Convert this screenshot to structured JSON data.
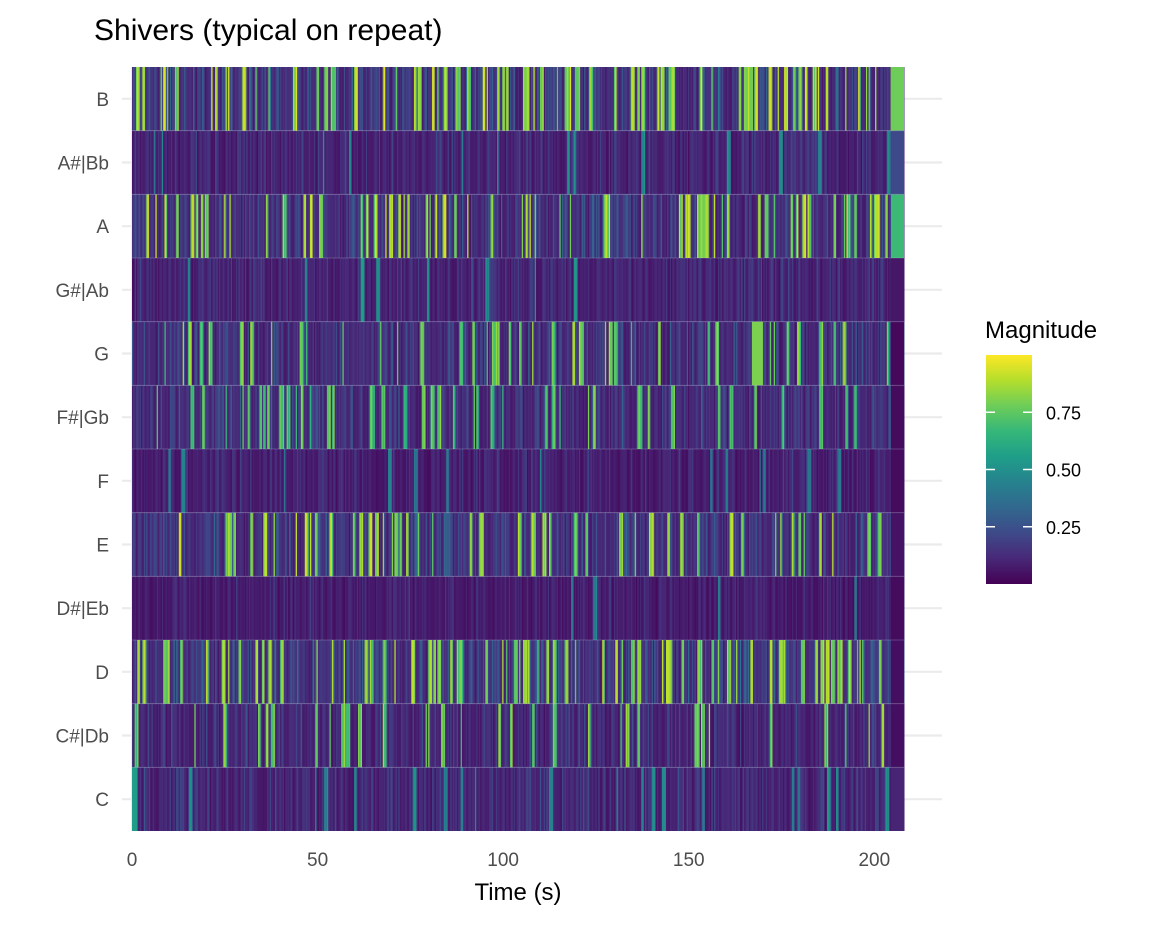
{
  "chart_data": {
    "type": "heatmap",
    "title": "Shivers (typical on repeat)",
    "xlabel": "Time (s)",
    "ylabel": "",
    "xlim": [
      0,
      208
    ],
    "x_ticks": [
      0,
      50,
      100,
      150,
      200
    ],
    "x_tick_labels": [
      "0",
      "50",
      "100",
      "150",
      "200"
    ],
    "pitch_classes": [
      "C",
      "C#|Db",
      "D",
      "D#|Eb",
      "E",
      "F",
      "F#|Gb",
      "G",
      "G#|Ab",
      "A",
      "A#|Bb",
      "B"
    ],
    "legend": {
      "title": "Magnitude",
      "breaks": [
        0.25,
        0.5,
        0.75
      ],
      "break_labels": [
        "0.25",
        "0.50",
        "0.75"
      ],
      "range": [
        0.0,
        1.0
      ],
      "position": "right"
    },
    "colors": {
      "palette": "viridis",
      "stops": [
        "#440154",
        "#482878",
        "#3E4A89",
        "#31688E",
        "#26828E",
        "#1F9E89",
        "#35B779",
        "#6DCD59",
        "#B4DE2C",
        "#FDE725"
      ],
      "gridline": "#ebebeb",
      "tick_text": "#4d4d4d"
    },
    "segment_duration_s": 0.35,
    "profiles": [
      {
        "pitch": "C",
        "mean": 0.14,
        "peak_rate": 0.04,
        "peak_level": 0.5
      },
      {
        "pitch": "C#|Db",
        "mean": 0.15,
        "peak_rate": 0.05,
        "peak_level": 0.85
      },
      {
        "pitch": "D",
        "mean": 0.2,
        "peak_rate": 0.13,
        "peak_level": 0.88
      },
      {
        "pitch": "D#|Eb",
        "mean": 0.1,
        "peak_rate": 0.01,
        "peak_level": 0.45
      },
      {
        "pitch": "E",
        "mean": 0.19,
        "peak_rate": 0.11,
        "peak_level": 0.88
      },
      {
        "pitch": "F",
        "mean": 0.11,
        "peak_rate": 0.02,
        "peak_level": 0.45
      },
      {
        "pitch": "F#|Gb",
        "mean": 0.17,
        "peak_rate": 0.08,
        "peak_level": 0.8
      },
      {
        "pitch": "G",
        "mean": 0.17,
        "peak_rate": 0.08,
        "peak_level": 0.85
      },
      {
        "pitch": "G#|Ab",
        "mean": 0.13,
        "peak_rate": 0.02,
        "peak_level": 0.55
      },
      {
        "pitch": "A",
        "mean": 0.18,
        "peak_rate": 0.12,
        "peak_level": 0.9
      },
      {
        "pitch": "A#|Bb",
        "mean": 0.13,
        "peak_rate": 0.02,
        "peak_level": 0.5
      },
      {
        "pitch": "B",
        "mean": 0.2,
        "peak_rate": 0.14,
        "peak_level": 0.92
      }
    ],
    "sustained_segments": [
      {
        "pitch": "B",
        "x_start": 204.5,
        "x_end": 208.0,
        "value": 0.78
      },
      {
        "pitch": "A",
        "x_start": 204.5,
        "x_end": 208.0,
        "value": 0.68
      },
      {
        "pitch": "A#|Bb",
        "x_start": 204.5,
        "x_end": 208.0,
        "value": 0.22
      },
      {
        "pitch": "G",
        "x_start": 167.0,
        "x_end": 170.0,
        "value": 0.8
      },
      {
        "pitch": "C",
        "x_start": 0.0,
        "x_end": 1.5,
        "value": 0.55
      },
      {
        "pitch": "G",
        "x_start": 204.5,
        "x_end": 208.0,
        "value": 0.02
      },
      {
        "pitch": "G#|Ab",
        "x_start": 204.5,
        "x_end": 208.0,
        "value": 0.06
      },
      {
        "pitch": "F#|Gb",
        "x_start": 204.5,
        "x_end": 208.0,
        "value": 0.03
      },
      {
        "pitch": "F",
        "x_start": 204.5,
        "x_end": 208.0,
        "value": 0.03
      },
      {
        "pitch": "E",
        "x_start": 204.5,
        "x_end": 208.0,
        "value": 0.05
      },
      {
        "pitch": "D#|Eb",
        "x_start": 204.5,
        "x_end": 208.0,
        "value": 0.03
      },
      {
        "pitch": "D",
        "x_start": 204.5,
        "x_end": 208.0,
        "value": 0.04
      },
      {
        "pitch": "C#|Db",
        "x_start": 204.5,
        "x_end": 208.0,
        "value": 0.04
      },
      {
        "pitch": "C",
        "x_start": 204.5,
        "x_end": 208.0,
        "value": 0.1
      }
    ]
  }
}
